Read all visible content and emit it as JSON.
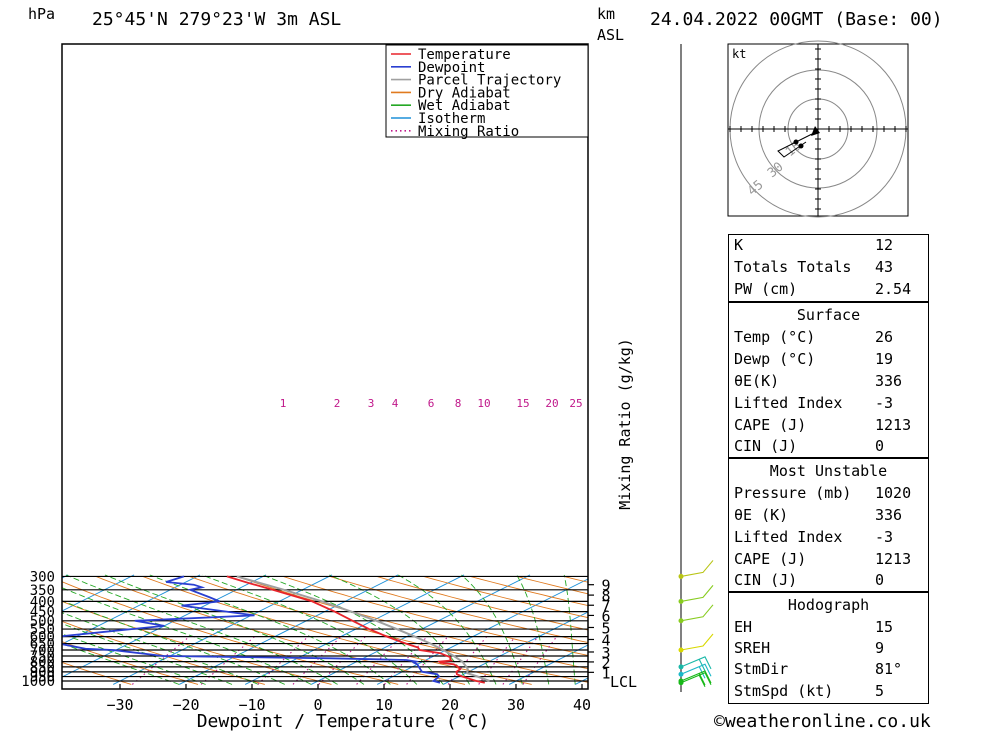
{
  "header": {
    "pressure_unit": "hPa",
    "location": "25°45'N 279°23'W 3m ASL",
    "height_unit_line1": "km",
    "height_unit_line2": "ASL",
    "datetime": "24.04.2022 00GMT (Base: 00)"
  },
  "chart_data": {
    "type": "line",
    "title": "",
    "xlabel": "Dewpoint / Temperature (°C)",
    "ylabel": "hPa",
    "ylabel_right": "Mixing Ratio (g/kg)",
    "x_ticks": [
      -30,
      -20,
      -10,
      0,
      10,
      20,
      30,
      40
    ],
    "x_range": [
      -40,
      40
    ],
    "y_ticks": [
      300,
      350,
      400,
      450,
      500,
      550,
      600,
      650,
      700,
      750,
      800,
      850,
      900,
      950,
      1000
    ],
    "y_range": [
      300,
      1030
    ],
    "y_scale": "log",
    "km_ticks": [
      {
        "km": "9",
        "p": 330
      },
      {
        "km": "8",
        "p": 372
      },
      {
        "km": "7",
        "p": 418
      },
      {
        "km": "6",
        "p": 470
      },
      {
        "km": "5",
        "p": 540
      },
      {
        "km": "4",
        "p": 620
      },
      {
        "km": "3",
        "p": 716
      },
      {
        "km": "2",
        "p": 803
      },
      {
        "km": "1",
        "p": 905
      }
    ],
    "lcl": {
      "label": "LCL",
      "p": 913
    },
    "mixing_ratio_labels": [
      "1",
      "2",
      "3",
      "4",
      "6",
      "8",
      "10",
      "15",
      "20",
      "25"
    ],
    "legend": {
      "position": "top-right",
      "entries": [
        {
          "label": "Temperature",
          "color": "#e8242b",
          "style": "solid"
        },
        {
          "label": "Dewpoint",
          "color": "#2a3fd1",
          "style": "solid"
        },
        {
          "label": "Parcel Trajectory",
          "color": "#a0a0a0",
          "style": "solid"
        },
        {
          "label": "Dry Adiabat",
          "color": "#e07a1f",
          "style": "solid"
        },
        {
          "label": "Wet Adiabat",
          "color": "#25a825",
          "style": "solid"
        },
        {
          "label": "Isotherm",
          "color": "#1e90d8",
          "style": "solid"
        },
        {
          "label": "Mixing Ratio",
          "color": "#c0178a",
          "style": "dotted"
        }
      ]
    },
    "series": [
      {
        "name": "Temperature",
        "color": "#e8242b",
        "points": [
          [
            1020,
            25.8
          ],
          [
            1000,
            24
          ],
          [
            950,
            20.5
          ],
          [
            925,
            19
          ],
          [
            900,
            18.2
          ],
          [
            875,
            18
          ],
          [
            850,
            17
          ],
          [
            825,
            15.5
          ],
          [
            810,
            13
          ],
          [
            800,
            12.5
          ],
          [
            790,
            14
          ],
          [
            780,
            13.5
          ],
          [
            760,
            12.8
          ],
          [
            725,
            10
          ],
          [
            700,
            6
          ],
          [
            680,
            5
          ],
          [
            650,
            2
          ],
          [
            600,
            -3
          ],
          [
            550,
            -8
          ],
          [
            500,
            -13
          ],
          [
            450,
            -18.5
          ],
          [
            400,
            -25
          ],
          [
            350,
            -34.5
          ],
          [
            320,
            -41
          ],
          [
            300,
            -45.5
          ]
        ]
      },
      {
        "name": "Dewpoint",
        "color": "#2a3fd1",
        "points": [
          [
            1020,
            19
          ],
          [
            1000,
            17.5
          ],
          [
            950,
            17
          ],
          [
            925,
            16
          ],
          [
            900,
            13
          ],
          [
            875,
            12
          ],
          [
            850,
            11
          ],
          [
            825,
            10
          ],
          [
            810,
            9
          ],
          [
            800,
            9
          ],
          [
            785,
            7
          ],
          [
            770,
            -5
          ],
          [
            750,
            -31
          ],
          [
            700,
            -40.5
          ],
          [
            690,
            -45
          ],
          [
            620,
            -55
          ],
          [
            595,
            -52
          ],
          [
            550,
            -44
          ],
          [
            530,
            -40
          ],
          [
            500,
            -46
          ],
          [
            470,
            -29.5
          ],
          [
            420,
            -43.5
          ],
          [
            400,
            -39
          ],
          [
            380,
            -42
          ],
          [
            350,
            -47
          ],
          [
            340,
            -46
          ],
          [
            330,
            -48
          ],
          [
            320,
            -53
          ],
          [
            300,
            -52
          ]
        ]
      },
      {
        "name": "Parcel Trajectory",
        "color": "#a0a0a0",
        "points": [
          [
            1000,
            26
          ],
          [
            950,
            22.8
          ],
          [
            913,
            20.2
          ],
          [
            875,
            19.2
          ],
          [
            850,
            18.2
          ],
          [
            800,
            16
          ],
          [
            750,
            13
          ],
          [
            700,
            9.6
          ],
          [
            650,
            5.7
          ],
          [
            600,
            1.2
          ],
          [
            550,
            -3.8
          ],
          [
            500,
            -9.4
          ],
          [
            450,
            -16
          ],
          [
            400,
            -23.5
          ],
          [
            350,
            -32.8
          ],
          [
            300,
            -44
          ]
        ]
      }
    ],
    "wind_barbs": [
      {
        "p": 300,
        "color": "#b8c414"
      },
      {
        "p": 400,
        "color": "#88cc20"
      },
      {
        "p": 500,
        "color": "#88cc20"
      },
      {
        "p": 700,
        "color": "#d8d800"
      },
      {
        "p": 850,
        "color": "#1ab8a8"
      },
      {
        "p": 925,
        "color": "#1ab8c8"
      },
      {
        "p": 1000,
        "color": "#18b818"
      },
      {
        "p": 1020,
        "color": "#18b818"
      }
    ]
  },
  "hodograph": {
    "unit": "kt",
    "ring_labels": [
      "15",
      "30",
      "45"
    ],
    "color": "#000000"
  },
  "indices": {
    "k_label": "K",
    "k_value": "12",
    "tt_label": "Totals Totals",
    "tt_value": "43",
    "pw_label": "PW (cm)",
    "pw_value": "2.54"
  },
  "surface": {
    "title": "Surface",
    "temp_label": "Temp (°C)",
    "temp_value": "26",
    "dewp_label": "Dewp (°C)",
    "dewp_value": "19",
    "theta_label": "θE(K)",
    "theta_value": "336",
    "li_label": "Lifted Index",
    "li_value": "-3",
    "cape_label": "CAPE (J)",
    "cape_value": "1213",
    "cin_label": "CIN (J)",
    "cin_value": "0"
  },
  "most_unstable": {
    "title": "Most Unstable",
    "pressure_label": "Pressure (mb)",
    "pressure_value": "1020",
    "theta_label": "θE (K)",
    "theta_value": "336",
    "li_label": "Lifted Index",
    "li_value": "-3",
    "cape_label": "CAPE (J)",
    "cape_value": "1213",
    "cin_label": "CIN (J)",
    "cin_value": "0"
  },
  "hodograph_box": {
    "title": "Hodograph",
    "eh_label": "EH",
    "eh_value": "15",
    "sreh_label": "SREH",
    "sreh_value": "9",
    "stmdir_label": "StmDir",
    "stmdir_value": "81°",
    "stmspd_label": "StmSpd (kt)",
    "stmspd_value": "5"
  },
  "footer": {
    "copyright": "©weatheronline.co.uk"
  }
}
